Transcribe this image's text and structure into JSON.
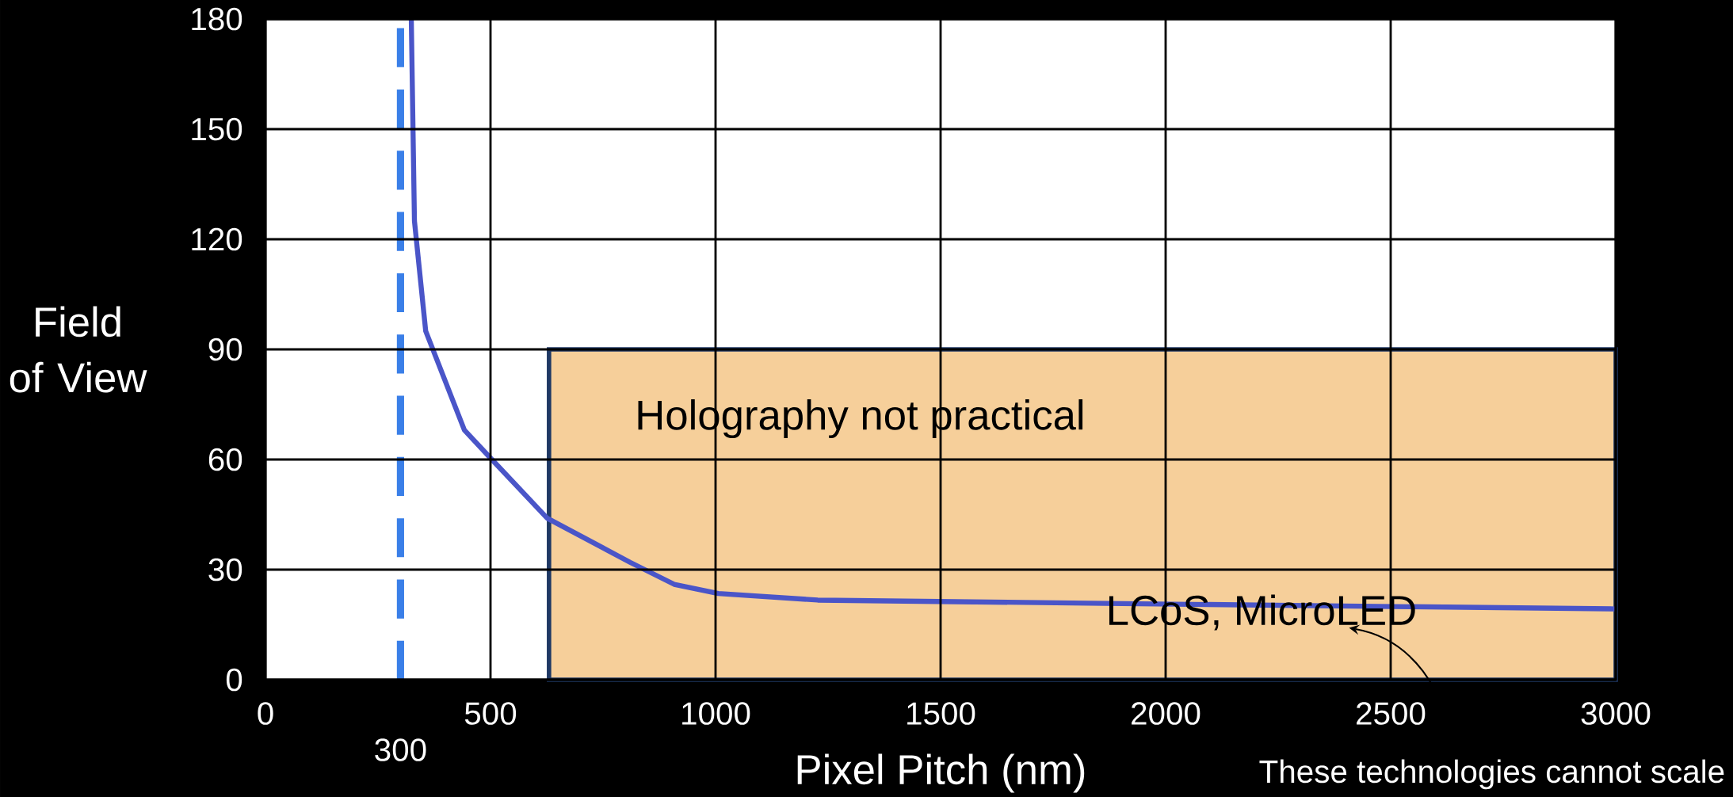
{
  "chart_data": {
    "type": "line",
    "xlabel": "Pixel Pitch (nm)",
    "ylabel": "Field of View",
    "xlim": [
      0,
      3000
    ],
    "ylim": [
      0,
      180
    ],
    "xticks": [
      0,
      500,
      1000,
      1500,
      2000,
      2500,
      3000
    ],
    "yticks": [
      0,
      30,
      60,
      90,
      120,
      150,
      180
    ],
    "grid": true,
    "marker": "none",
    "line_style": "solid",
    "series": [
      {
        "color": "#4a55c8",
        "x": [
          324,
          331,
          356,
          442,
          503,
          626,
          810,
          908,
          1006,
          1227,
          1866,
          3000
        ],
        "values": [
          180,
          125,
          95,
          68,
          60,
          44,
          32,
          26,
          23.5,
          21.7,
          20.8,
          19.3
        ]
      }
    ],
    "ref_lines": [
      {
        "axis": "x",
        "value": 300,
        "label": "300",
        "color": "#3a7fe8",
        "line_style": "dashed"
      }
    ],
    "bands": [
      {
        "axis": "x",
        "from": 630,
        "to": 3000,
        "label": "Holography not practical",
        "color": "#f6cf9a"
      }
    ],
    "annotations": [
      "LCoS, MicroLED",
      "These technologies cannot scale"
    ]
  }
}
